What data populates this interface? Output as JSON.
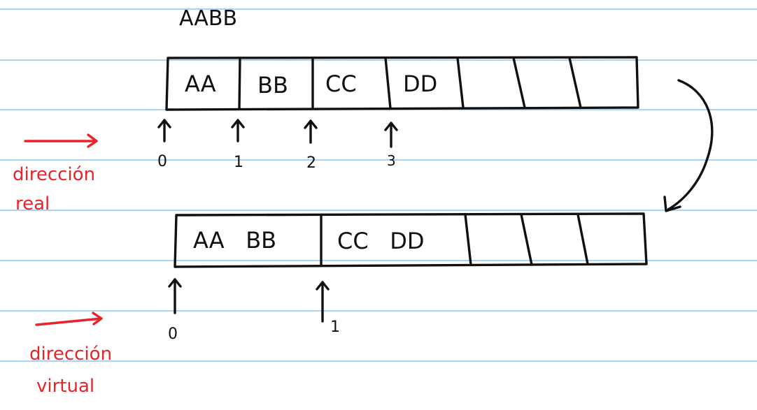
{
  "colors": {
    "ink": "#111111",
    "annotation": "#e8232a",
    "ruled_line": "#8ec6f2",
    "paper": "#ffffff"
  },
  "top_label": "AABB",
  "real": {
    "cells": [
      "AA",
      "BB",
      "CC",
      "DD",
      "",
      "",
      ""
    ],
    "indices": [
      "0",
      "1",
      "2",
      "3"
    ],
    "caption_line1": "dirección",
    "caption_line2": "real"
  },
  "virtual": {
    "cells": [
      "AA   BB",
      "CC   DD",
      "",
      "",
      ""
    ],
    "indices": [
      "0",
      "1"
    ],
    "caption_line1": "dirección",
    "caption_line2": "virtual"
  }
}
